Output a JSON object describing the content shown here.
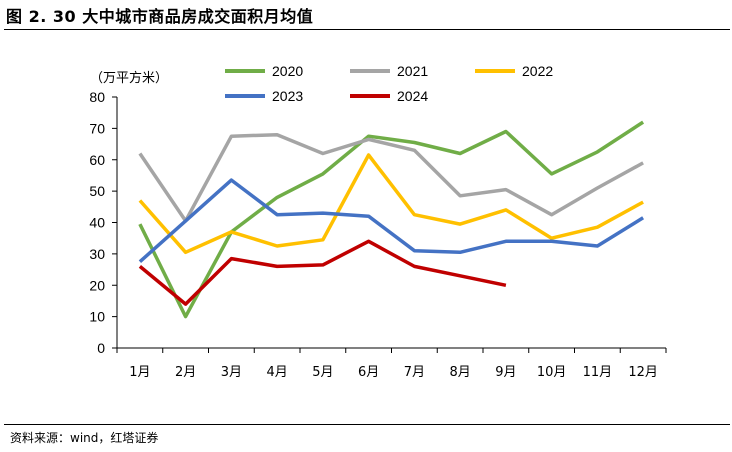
{
  "figure": {
    "title": "图 2. 30 大中城市商品房成交面积月均值",
    "source": "资料来源：wind，红塔证券"
  },
  "chart_data": {
    "type": "line",
    "unit_label": "（万平方米）",
    "categories": [
      "1月",
      "2月",
      "3月",
      "4月",
      "5月",
      "6月",
      "7月",
      "8月",
      "9月",
      "10月",
      "11月",
      "12月"
    ],
    "ylim": [
      0,
      80
    ],
    "yticks": [
      "0",
      "10",
      "20",
      "30",
      "40",
      "50",
      "60",
      "70",
      "80"
    ],
    "grid": false,
    "legend_position": "top",
    "series": [
      {
        "name": "2020",
        "color": "#70ad47",
        "values": [
          39.5,
          10,
          37,
          48,
          55.5,
          67.5,
          65.5,
          62,
          69,
          55.5,
          62.5,
          72
        ]
      },
      {
        "name": "2021",
        "color": "#a5a5a5",
        "values": [
          62,
          40.5,
          67.5,
          68,
          62,
          66.5,
          63,
          48.5,
          50.5,
          42.5,
          51,
          59
        ]
      },
      {
        "name": "2022",
        "color": "#ffc000",
        "values": [
          47,
          30.5,
          37,
          32.5,
          34.5,
          61.5,
          42.5,
          39.5,
          44,
          35,
          38.5,
          46.5
        ]
      },
      {
        "name": "2023",
        "color": "#4472c4",
        "values": [
          27.5,
          40.5,
          53.5,
          42.5,
          43,
          42,
          31,
          30.5,
          34,
          34,
          32.5,
          41.5
        ]
      },
      {
        "name": "2024",
        "color": "#c00000",
        "values": [
          26,
          14,
          28.5,
          26,
          26.5,
          34,
          26,
          23,
          20,
          null,
          null,
          null
        ]
      }
    ]
  }
}
